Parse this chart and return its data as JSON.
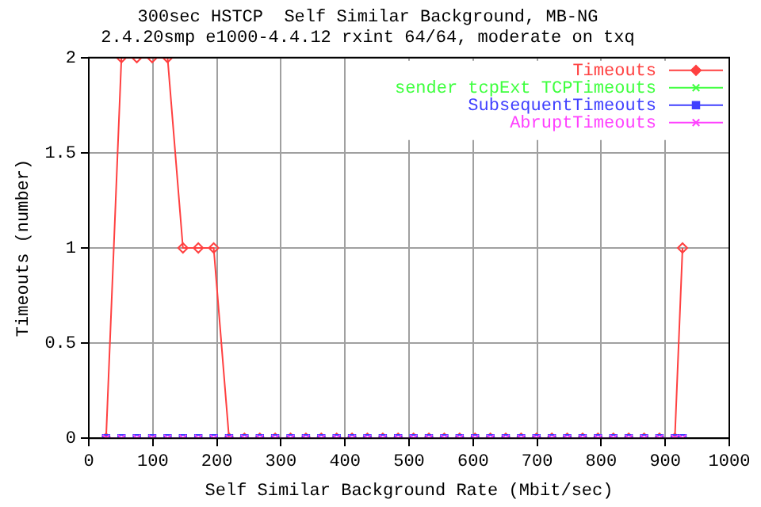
{
  "chart_data": {
    "type": "line",
    "title": "300sec HSTCP  Self Similar Background, MB-NG",
    "subtitle": "2.4.20smp e1000-4.4.12 rxint 64/64, moderate on txq",
    "xlabel": "Self Similar Background Rate (Mbit/sec)",
    "ylabel": "Timeouts (number)",
    "x": [
      27,
      51,
      75,
      99,
      123,
      147,
      171,
      195,
      219,
      243,
      267,
      291,
      315,
      339,
      363,
      387,
      411,
      435,
      459,
      483,
      507,
      531,
      555,
      579,
      603,
      627,
      651,
      675,
      699,
      723,
      747,
      771,
      795,
      819,
      843,
      867,
      891,
      915,
      927
    ],
    "series": [
      {
        "name": "Timeouts",
        "color": "#ff4040",
        "marker": "diamond",
        "values": [
          0,
          2,
          2,
          2,
          2,
          1,
          1,
          1,
          0,
          0,
          0,
          0,
          0,
          0,
          0,
          0,
          0,
          0,
          0,
          0,
          0,
          0,
          0,
          0,
          0,
          0,
          0,
          0,
          0,
          0,
          0,
          0,
          0,
          0,
          0,
          0,
          0,
          0,
          1
        ]
      },
      {
        "name": "sender tcpExt TCPTimeouts",
        "color": "#40ff40",
        "marker": "cross",
        "values": [
          null,
          null,
          null,
          null,
          null,
          null,
          null,
          null,
          null,
          null,
          null,
          null,
          null,
          null,
          null,
          null,
          null,
          null,
          null,
          null,
          null,
          null,
          null,
          null,
          null,
          null,
          null,
          null,
          null,
          null,
          null,
          null,
          null,
          null,
          null,
          null,
          null,
          null,
          null
        ]
      },
      {
        "name": "SubsequentTimeouts",
        "color": "#4040ff",
        "marker": "square",
        "values": [
          0,
          0,
          0,
          0,
          0,
          0,
          0,
          0,
          0,
          0,
          0,
          0,
          0,
          0,
          0,
          0,
          0,
          0,
          0,
          0,
          0,
          0,
          0,
          0,
          0,
          0,
          0,
          0,
          0,
          0,
          0,
          0,
          0,
          0,
          0,
          0,
          0,
          0,
          0
        ]
      },
      {
        "name": "AbruptTimeouts",
        "color": "#ff40ff",
        "marker": "cross",
        "values": [
          0,
          0,
          0,
          0,
          0,
          0,
          0,
          0,
          0,
          0,
          0,
          0,
          0,
          0,
          0,
          0,
          0,
          0,
          0,
          0,
          0,
          0,
          0,
          0,
          0,
          0,
          0,
          0,
          0,
          0,
          0,
          0,
          0,
          0,
          0,
          0,
          0,
          0,
          0
        ]
      }
    ],
    "xlim": [
      0,
      1000
    ],
    "xticks": [
      0,
      100,
      200,
      300,
      400,
      500,
      600,
      700,
      800,
      900,
      1000
    ],
    "ylim": [
      0,
      2
    ],
    "yticks": [
      0,
      0.5,
      1,
      1.5,
      2
    ],
    "grid": true,
    "legend": "top right"
  }
}
